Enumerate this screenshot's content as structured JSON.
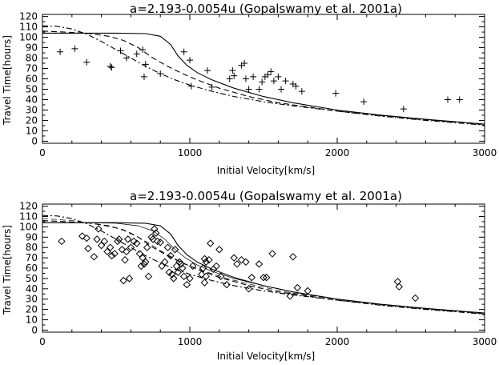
{
  "chart_data": [
    {
      "type": "scatter",
      "title": "a=2.193-0.0054u (Gopalswamy et al. 2001a)",
      "xlabel": "Initial Velocity[km/s]",
      "ylabel": "Travel Time[hours]",
      "xlim": [
        0,
        3000
      ],
      "ylim": [
        -2,
        122
      ],
      "xticks": [
        0,
        1000,
        2000,
        3000
      ],
      "yticks": [
        0,
        10,
        20,
        30,
        40,
        50,
        60,
        70,
        80,
        90,
        100,
        110,
        120
      ],
      "grid": false,
      "curves": [
        {
          "style": "solid",
          "points": [
            [
              0,
              104
            ],
            [
              300,
              104
            ],
            [
              500,
              104
            ],
            [
              700,
              103.5
            ],
            [
              800,
              101
            ],
            [
              870,
              93
            ],
            [
              920,
              82
            ],
            [
              980,
              73
            ],
            [
              1050,
              66
            ],
            [
              1150,
              59
            ],
            [
              1300,
              51
            ],
            [
              1500,
              43
            ],
            [
              1700,
              37
            ],
            [
              2000,
              30
            ],
            [
              2300,
              25
            ],
            [
              2600,
              21
            ],
            [
              3000,
              16.5
            ]
          ]
        },
        {
          "style": "dashed",
          "points": [
            [
              0,
              106
            ],
            [
              150,
              105
            ],
            [
              300,
              104
            ],
            [
              450,
              101
            ],
            [
              550,
              97
            ],
            [
              650,
              90
            ],
            [
              750,
              80
            ],
            [
              850,
              72
            ],
            [
              950,
              65
            ],
            [
              1050,
              59
            ],
            [
              1200,
              51
            ],
            [
              1400,
              43
            ],
            [
              1600,
              37
            ],
            [
              1800,
              33
            ],
            [
              2000,
              29
            ],
            [
              2300,
              24.5
            ],
            [
              2600,
              20.5
            ],
            [
              3000,
              16
            ]
          ]
        },
        {
          "style": "dashdot",
          "points": [
            [
              0,
              111
            ],
            [
              100,
              110.5
            ],
            [
              200,
              108
            ],
            [
              300,
              103
            ],
            [
              400,
              96
            ],
            [
              500,
              88
            ],
            [
              600,
              80
            ],
            [
              700,
              72
            ],
            [
              800,
              65
            ],
            [
              900,
              59
            ],
            [
              1000,
              54
            ],
            [
              1150,
              48
            ],
            [
              1300,
              43
            ],
            [
              1500,
              38
            ],
            [
              1700,
              34
            ],
            [
              2000,
              29
            ],
            [
              2300,
              24
            ],
            [
              2600,
              20
            ],
            [
              3000,
              15.5
            ]
          ]
        }
      ],
      "series": [
        {
          "name": "",
          "marker": "plus",
          "points": [
            [
              120,
              86
            ],
            [
              220,
              89
            ],
            [
              300,
              76
            ],
            [
              460,
              72
            ],
            [
              470,
              71
            ],
            [
              530,
              87
            ],
            [
              570,
              80
            ],
            [
              640,
              84
            ],
            [
              680,
              88
            ],
            [
              690,
              62
            ],
            [
              700,
              74
            ],
            [
              800,
              65
            ],
            [
              960,
              86
            ],
            [
              1000,
              78
            ],
            [
              1010,
              53
            ],
            [
              1120,
              68
            ],
            [
              1150,
              52
            ],
            [
              1270,
              60
            ],
            [
              1290,
              68
            ],
            [
              1300,
              63
            ],
            [
              1350,
              73
            ],
            [
              1370,
              75
            ],
            [
              1380,
              60
            ],
            [
              1400,
              50
            ],
            [
              1430,
              62
            ],
            [
              1470,
              50
            ],
            [
              1490,
              57
            ],
            [
              1510,
              62
            ],
            [
              1530,
              64
            ],
            [
              1550,
              67
            ],
            [
              1570,
              58
            ],
            [
              1600,
              62
            ],
            [
              1620,
              50
            ],
            [
              1650,
              58
            ],
            [
              1700,
              55
            ],
            [
              1720,
              53
            ],
            [
              1760,
              48
            ],
            [
              1990,
              46
            ],
            [
              2180,
              38
            ],
            [
              2450,
              31
            ],
            [
              2750,
              40
            ],
            [
              2830,
              40
            ]
          ]
        }
      ]
    },
    {
      "type": "scatter",
      "title": "a=2.193-0.0054u (Gopalswamy et al. 2001a)",
      "xlabel": "Initial Velocity[km/s]",
      "ylabel": "Travel Time[hours]",
      "xlim": [
        0,
        3000
      ],
      "ylim": [
        -2,
        122
      ],
      "xticks": [
        0,
        1000,
        2000,
        3000
      ],
      "yticks": [
        0,
        10,
        20,
        30,
        40,
        50,
        60,
        70,
        80,
        90,
        100,
        110,
        120
      ],
      "grid": false,
      "curves": [
        {
          "style": "solid",
          "points": [
            [
              0,
              104
            ],
            [
              300,
              104
            ],
            [
              500,
              104
            ],
            [
              700,
              103.5
            ],
            [
              800,
              101
            ],
            [
              870,
              93
            ],
            [
              920,
              82
            ],
            [
              980,
              73
            ],
            [
              1050,
              66
            ],
            [
              1150,
              59
            ],
            [
              1300,
              51
            ],
            [
              1500,
              43
            ],
            [
              1700,
              37
            ],
            [
              2000,
              30
            ],
            [
              2300,
              25
            ],
            [
              2600,
              21
            ],
            [
              3000,
              16.5
            ]
          ]
        },
        {
          "style": "dashed",
          "points": [
            [
              0,
              106
            ],
            [
              150,
              105
            ],
            [
              300,
              104
            ],
            [
              450,
              101
            ],
            [
              550,
              97
            ],
            [
              650,
              90
            ],
            [
              750,
              80
            ],
            [
              850,
              72
            ],
            [
              950,
              65
            ],
            [
              1050,
              59
            ],
            [
              1200,
              51
            ],
            [
              1400,
              43
            ],
            [
              1600,
              37
            ],
            [
              1800,
              33
            ],
            [
              2000,
              29
            ],
            [
              2300,
              24.5
            ],
            [
              2600,
              20.5
            ],
            [
              3000,
              16
            ]
          ]
        },
        {
          "style": "dashdot",
          "points": [
            [
              0,
              111
            ],
            [
              100,
              110.5
            ],
            [
              200,
              108
            ],
            [
              300,
              103
            ],
            [
              400,
              96
            ],
            [
              500,
              88
            ],
            [
              600,
              80
            ],
            [
              700,
              72
            ],
            [
              800,
              65
            ],
            [
              900,
              59
            ],
            [
              1000,
              54
            ],
            [
              1150,
              48
            ],
            [
              1300,
              43
            ],
            [
              1500,
              38
            ],
            [
              1700,
              34
            ],
            [
              2000,
              29
            ],
            [
              2300,
              24
            ],
            [
              2600,
              20
            ],
            [
              3000,
              15.5
            ]
          ]
        },
        {
          "style": "solid",
          "points": [
            [
              0,
              104
            ],
            [
              300,
              104
            ],
            [
              500,
              103.5
            ],
            [
              650,
              101
            ],
            [
              750,
              96
            ],
            [
              830,
              88
            ],
            [
              900,
              78
            ],
            [
              970,
              70
            ],
            [
              1050,
              63
            ],
            [
              1150,
              57
            ],
            [
              1300,
              50
            ],
            [
              1500,
              43
            ],
            [
              1700,
              37
            ],
            [
              2000,
              30
            ],
            [
              2300,
              25
            ],
            [
              2600,
              21
            ],
            [
              3000,
              16.5
            ]
          ]
        },
        {
          "style": "dashed",
          "points": [
            [
              0,
              108
            ],
            [
              200,
              106
            ],
            [
              350,
              103
            ],
            [
              500,
              99
            ],
            [
              600,
              94
            ],
            [
              700,
              86
            ],
            [
              800,
              77
            ],
            [
              900,
              69
            ],
            [
              1000,
              62
            ],
            [
              1100,
              57
            ],
            [
              1250,
              50
            ],
            [
              1450,
              43
            ],
            [
              1650,
              37
            ],
            [
              2000,
              30
            ],
            [
              2300,
              25
            ],
            [
              2600,
              21
            ],
            [
              3000,
              16
            ]
          ]
        }
      ],
      "series": [
        {
          "name": "",
          "marker": "diamond",
          "points": [
            [
              130,
              86
            ],
            [
              270,
              91
            ],
            [
              300,
              89
            ],
            [
              310,
              79
            ],
            [
              350,
              71
            ],
            [
              370,
              88
            ],
            [
              380,
              98
            ],
            [
              400,
              82
            ],
            [
              420,
              86
            ],
            [
              440,
              76
            ],
            [
              460,
              80
            ],
            [
              470,
              72
            ],
            [
              490,
              74
            ],
            [
              510,
              86
            ],
            [
              520,
              88
            ],
            [
              540,
              78
            ],
            [
              550,
              48
            ],
            [
              560,
              68
            ],
            [
              570,
              76
            ],
            [
              580,
              88
            ],
            [
              590,
              50
            ],
            [
              600,
              80
            ],
            [
              620,
              86
            ],
            [
              640,
              84
            ],
            [
              660,
              74
            ],
            [
              670,
              62
            ],
            [
              680,
              70
            ],
            [
              690,
              64
            ],
            [
              700,
              66
            ],
            [
              710,
              80
            ],
            [
              720,
              52
            ],
            [
              740,
              90
            ],
            [
              750,
              88
            ],
            [
              760,
              98
            ],
            [
              770,
              94
            ],
            [
              780,
              86
            ],
            [
              800,
              85
            ],
            [
              810,
              62
            ],
            [
              830,
              66
            ],
            [
              850,
              80
            ],
            [
              860,
              56
            ],
            [
              870,
              72
            ],
            [
              880,
              54
            ],
            [
              890,
              50
            ],
            [
              900,
              78
            ],
            [
              910,
              62
            ],
            [
              920,
              56
            ],
            [
              930,
              66
            ],
            [
              940,
              64
            ],
            [
              950,
              60
            ],
            [
              960,
              52
            ],
            [
              980,
              44
            ],
            [
              1000,
              50
            ],
            [
              1020,
              62
            ],
            [
              1080,
              54
            ],
            [
              1090,
              60
            ],
            [
              1100,
              46
            ],
            [
              1100,
              69
            ],
            [
              1110,
              66
            ],
            [
              1110,
              52
            ],
            [
              1130,
              68
            ],
            [
              1140,
              84
            ],
            [
              1160,
              59
            ],
            [
              1180,
              62
            ],
            [
              1200,
              78
            ],
            [
              1210,
              52
            ],
            [
              1250,
              44
            ],
            [
              1300,
              70
            ],
            [
              1320,
              64
            ],
            [
              1350,
              68
            ],
            [
              1380,
              66
            ],
            [
              1400,
              40
            ],
            [
              1420,
              51
            ],
            [
              1470,
              64
            ],
            [
              1500,
              51
            ],
            [
              1520,
              51
            ],
            [
              1560,
              74
            ],
            [
              1680,
              33
            ],
            [
              1700,
              71
            ],
            [
              1730,
              41
            ],
            [
              1800,
              38
            ],
            [
              2410,
              47
            ],
            [
              2420,
              42
            ],
            [
              2530,
              31
            ]
          ]
        }
      ]
    }
  ]
}
